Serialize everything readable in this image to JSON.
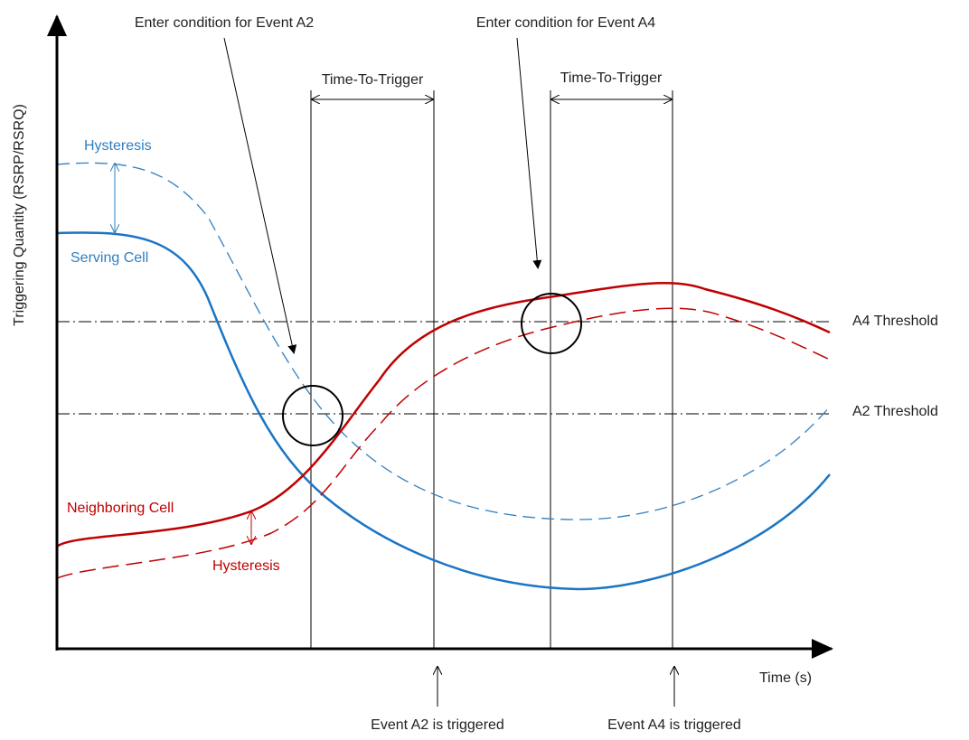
{
  "annotations": {
    "enter_a2": "Enter condition for Event A2",
    "enter_a4": "Enter condition for Event A4"
  },
  "time_to_trigger": [
    "Time-To-Trigger",
    "Time-To-Trigger"
  ],
  "curves": {
    "serving_hysteresis": "Hysteresis",
    "serving_cell": "Serving Cell",
    "neighboring_cell": "Neighboring Cell",
    "neighboring_hysteresis": "Hysteresis"
  },
  "thresholds": [
    "A4 Threshold",
    "A2 Threshold"
  ],
  "axes": {
    "y_label": "Triggering Quantity (RSRP/RSRQ)",
    "x_label": "Time (s)"
  },
  "events": [
    "Event A2 is triggered",
    "Event A4 is triggered"
  ]
}
